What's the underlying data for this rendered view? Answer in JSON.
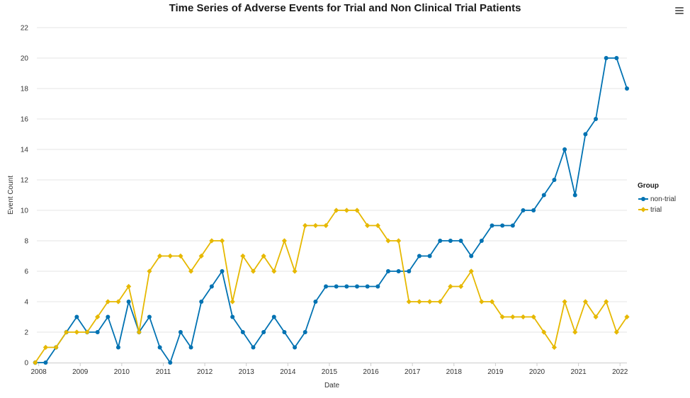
{
  "chart_data": {
    "type": "line",
    "title": "Time Series of Adverse Events for Trial and Non Clinical Trial Patients",
    "xlabel": "Date",
    "ylabel": "Event Count",
    "ylim": [
      0,
      22
    ],
    "xlim": [
      "2007-12-15",
      "2022-03-01"
    ],
    "y_ticks": [
      0,
      2,
      4,
      6,
      8,
      10,
      12,
      14,
      16,
      18,
      20,
      22
    ],
    "x_ticks": [
      "2008",
      "2009",
      "2010",
      "2011",
      "2012",
      "2013",
      "2014",
      "2015",
      "2016",
      "2017",
      "2018",
      "2019",
      "2020",
      "2021",
      "2022"
    ],
    "grid": "horizontal",
    "legend": {
      "title": "Group",
      "position": "right"
    },
    "x": [
      "2007-12",
      "2008-03",
      "2008-06",
      "2008-09",
      "2008-12",
      "2009-03",
      "2009-06",
      "2009-09",
      "2009-12",
      "2010-03",
      "2010-06",
      "2010-09",
      "2010-12",
      "2011-03",
      "2011-06",
      "2011-09",
      "2011-12",
      "2012-03",
      "2012-06",
      "2012-09",
      "2012-12",
      "2013-03",
      "2013-06",
      "2013-09",
      "2013-12",
      "2014-03",
      "2014-06",
      "2014-09",
      "2014-12",
      "2015-03",
      "2015-06",
      "2015-09",
      "2015-12",
      "2016-03",
      "2016-06",
      "2016-09",
      "2016-12",
      "2017-03",
      "2017-06",
      "2017-09",
      "2017-12",
      "2018-03",
      "2018-06",
      "2018-09",
      "2018-12",
      "2019-03",
      "2019-06",
      "2019-09",
      "2019-12",
      "2020-03",
      "2020-06",
      "2020-09",
      "2020-12",
      "2021-03",
      "2021-06",
      "2021-09",
      "2021-12",
      "2022-03"
    ],
    "series": [
      {
        "name": "non-trial",
        "color": "#0072B2",
        "marker": "circle",
        "values": [
          0,
          0,
          1,
          2,
          3,
          2,
          2,
          3,
          1,
          4,
          2,
          3,
          1,
          0,
          2,
          1,
          4,
          5,
          6,
          3,
          2,
          1,
          2,
          3,
          2,
          1,
          2,
          4,
          5,
          5,
          5,
          5,
          5,
          5,
          6,
          6,
          6,
          7,
          7,
          8,
          8,
          8,
          7,
          8,
          9,
          9,
          9,
          10,
          10,
          11,
          12,
          14,
          11,
          15,
          16,
          20,
          20,
          18
        ]
      },
      {
        "name": "trial",
        "color": "#E6B800",
        "marker": "diamond",
        "values": [
          0,
          1,
          1,
          2,
          2,
          2,
          3,
          4,
          4,
          5,
          2,
          6,
          7,
          7,
          7,
          6,
          7,
          8,
          8,
          4,
          7,
          6,
          7,
          6,
          8,
          6,
          9,
          9,
          9,
          10,
          10,
          10,
          9,
          9,
          8,
          8,
          4,
          4,
          4,
          4,
          5,
          5,
          6,
          4,
          4,
          3,
          3,
          3,
          3,
          2,
          1,
          4,
          2,
          4,
          3,
          4,
          2,
          3
        ]
      }
    ]
  },
  "toolbar": {
    "menu_icon": "hamburger-menu-icon"
  }
}
